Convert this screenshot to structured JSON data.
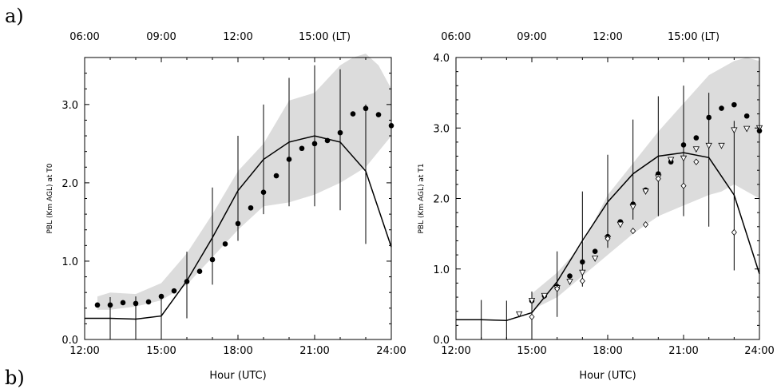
{
  "panel_labels": {
    "a": "a)",
    "b": "b)"
  },
  "chart_data": [
    {
      "type": "line",
      "xlabel": "Hour (UTC)",
      "ylabel": "PBL (Km AGL) at T0",
      "xlim": [
        12,
        24
      ],
      "ylim": [
        0,
        3.6
      ],
      "x_ticks": [
        "12:00",
        "15:00",
        "18:00",
        "21:00",
        "24:00"
      ],
      "y_ticks": [
        "0.0",
        "1.0",
        "2.0",
        "3.0"
      ],
      "top_axis_ticks": [
        "06:00",
        "09:00",
        "12:00",
        "15:00 (LT)"
      ],
      "grid": false,
      "shaded_band": {
        "x": [
          12.5,
          13,
          14,
          15,
          16,
          17,
          18,
          19,
          20,
          21,
          22,
          22.5,
          23,
          23.5,
          24
        ],
        "lower": [
          0.38,
          0.38,
          0.42,
          0.5,
          0.7,
          1.05,
          1.4,
          1.7,
          1.75,
          1.85,
          2.0,
          2.1,
          2.2,
          2.4,
          2.6
        ],
        "upper": [
          0.55,
          0.6,
          0.58,
          0.72,
          1.1,
          1.6,
          2.15,
          2.5,
          3.05,
          3.15,
          3.5,
          3.6,
          3.65,
          3.5,
          3.2
        ]
      },
      "mean_line": {
        "x": [
          12,
          13,
          14,
          15,
          16,
          17,
          18,
          19,
          20,
          21,
          22,
          23,
          24
        ],
        "y": [
          0.27,
          0.27,
          0.26,
          0.3,
          0.75,
          1.3,
          1.9,
          2.3,
          2.52,
          2.6,
          2.52,
          2.15,
          1.18
        ]
      },
      "error_bars": [
        {
          "x": 13,
          "low": 0.0,
          "high": 0.54
        },
        {
          "x": 14,
          "low": 0.0,
          "high": 0.55
        },
        {
          "x": 15,
          "low": 0.0,
          "high": 0.55
        },
        {
          "x": 16,
          "low": 0.27,
          "high": 1.12
        },
        {
          "x": 17,
          "low": 0.7,
          "high": 1.94
        },
        {
          "x": 18,
          "low": 1.26,
          "high": 2.6
        },
        {
          "x": 19,
          "low": 1.6,
          "high": 3.0
        },
        {
          "x": 20,
          "low": 1.7,
          "high": 3.34
        },
        {
          "x": 21,
          "low": 1.7,
          "high": 3.5
        },
        {
          "x": 22,
          "low": 1.65,
          "high": 3.45
        },
        {
          "x": 23,
          "low": 1.22,
          "high": 3.0
        }
      ],
      "series": [
        {
          "marker": "filled-circle",
          "x": [
            12.5,
            13,
            13.5,
            14,
            14.5,
            15,
            15.5,
            16,
            16.5,
            17,
            17.5,
            18,
            18.5,
            19,
            19.5,
            20,
            20.5,
            21,
            21.5,
            22,
            22.5,
            23,
            23.5,
            24
          ],
          "y": [
            0.44,
            0.44,
            0.47,
            0.46,
            0.48,
            0.55,
            0.62,
            0.74,
            0.87,
            1.02,
            1.22,
            1.48,
            1.68,
            1.88,
            2.09,
            2.3,
            2.44,
            2.5,
            2.54,
            2.64,
            2.88,
            2.95,
            2.87,
            2.73
          ]
        }
      ]
    },
    {
      "type": "line",
      "xlabel": "Hour (UTC)",
      "ylabel": "PBL (Km AGL) at T1",
      "xlim": [
        12,
        24
      ],
      "ylim": [
        0,
        4.0
      ],
      "x_ticks": [
        "12:00",
        "15:00",
        "18:00",
        "21:00",
        "24:00"
      ],
      "y_ticks": [
        "0.0",
        "1.0",
        "2.0",
        "3.0",
        "4.0"
      ],
      "top_axis_ticks": [
        "06:00",
        "09:00",
        "12:00",
        "15:00 (LT)"
      ],
      "grid": false,
      "shaded_band": {
        "x": [
          15,
          16,
          17,
          18,
          19,
          20,
          21,
          22,
          22.5,
          23,
          23.5,
          24
        ],
        "lower": [
          0.42,
          0.6,
          0.9,
          1.2,
          1.5,
          1.75,
          1.9,
          2.05,
          2.1,
          2.2,
          2.1,
          2.0
        ],
        "upper": [
          0.65,
          0.95,
          1.35,
          2.05,
          2.5,
          2.95,
          3.35,
          3.75,
          3.85,
          3.95,
          4.0,
          3.95
        ]
      },
      "mean_line": {
        "x": [
          12,
          13,
          14,
          15,
          16,
          17,
          18,
          19,
          20,
          21,
          22,
          23,
          24
        ],
        "y": [
          0.28,
          0.28,
          0.27,
          0.38,
          0.82,
          1.4,
          1.95,
          2.35,
          2.6,
          2.65,
          2.58,
          2.05,
          0.93
        ]
      },
      "error_bars": [
        {
          "x": 13,
          "low": 0.0,
          "high": 0.56
        },
        {
          "x": 14,
          "low": 0.0,
          "high": 0.55
        },
        {
          "x": 15,
          "low": 0.0,
          "high": 0.68
        },
        {
          "x": 16,
          "low": 0.32,
          "high": 1.25
        },
        {
          "x": 17,
          "low": 0.75,
          "high": 2.1
        },
        {
          "x": 18,
          "low": 1.3,
          "high": 2.62
        },
        {
          "x": 19,
          "low": 1.7,
          "high": 3.12
        },
        {
          "x": 20,
          "low": 1.75,
          "high": 3.45
        },
        {
          "x": 21,
          "low": 1.75,
          "high": 3.6
        },
        {
          "x": 22,
          "low": 1.6,
          "high": 3.5
        },
        {
          "x": 23,
          "low": 0.98,
          "high": 3.1
        }
      ],
      "series": [
        {
          "marker": "filled-circle",
          "x": [
            15,
            15.5,
            16,
            16.5,
            17,
            17.5,
            18,
            18.5,
            19,
            19.5,
            20,
            20.5,
            21,
            21.5,
            22,
            22.5,
            23,
            23.5,
            24
          ],
          "y": [
            0.55,
            0.62,
            0.75,
            0.9,
            1.1,
            1.25,
            1.46,
            1.67,
            1.92,
            2.12,
            2.35,
            2.52,
            2.76,
            2.86,
            3.15,
            3.28,
            3.33,
            3.17,
            2.96
          ]
        },
        {
          "marker": "open-triangle-down",
          "x": [
            14.5,
            15,
            15.5,
            16,
            16.5,
            17,
            17.5,
            18,
            18.5,
            19,
            19.5,
            20,
            20.5,
            21,
            21.5,
            22,
            22.5,
            23,
            23.5,
            24
          ],
          "y": [
            0.36,
            0.55,
            0.62,
            0.73,
            0.82,
            0.95,
            1.15,
            1.43,
            1.63,
            1.88,
            2.1,
            2.3,
            2.55,
            2.57,
            2.7,
            2.75,
            2.75,
            2.97,
            2.99,
            3.0
          ]
        },
        {
          "marker": "open-diamond",
          "x": [
            15,
            16,
            17,
            18,
            19,
            19.5,
            20,
            21,
            21.5,
            23
          ],
          "y": [
            0.32,
            0.72,
            0.83,
            1.43,
            1.54,
            1.63,
            2.28,
            2.18,
            2.52,
            1.52
          ]
        }
      ]
    }
  ]
}
